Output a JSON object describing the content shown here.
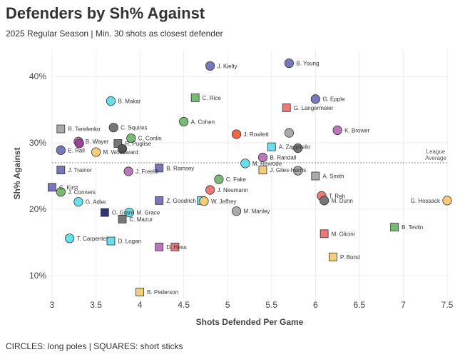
{
  "header": {
    "title": "Defenders by Sh% Against",
    "subtitle": "2025 Regular Season | Min. 30 shots as closest defender"
  },
  "footer": "CIRCLES: long poles | SQUARES: short sticks",
  "chart_data": {
    "type": "scatter",
    "xlabel": "Shots Defended Per Game",
    "ylabel": "Sh% Against",
    "xlim": [
      3.0,
      7.5
    ],
    "ylim": [
      6,
      44
    ],
    "xticks": [
      3,
      3.5,
      4,
      4.5,
      5,
      5.5,
      6,
      6.5,
      7,
      7.5
    ],
    "xtick_labels": [
      "3",
      "3.5",
      "4",
      "4.5",
      "5",
      "5.5",
      "6",
      "6.5",
      "7",
      "7.5"
    ],
    "yticks": [
      10,
      20,
      30,
      40
    ],
    "ytick_labels": [
      "10%",
      "20%",
      "30%",
      "40%"
    ],
    "grid": true,
    "reference_line": {
      "y": 27.0,
      "label_lines": [
        "League",
        "Average"
      ]
    },
    "marker_legend": {
      "circle": "long poles",
      "square": "short sticks"
    },
    "points": [
      {
        "name": "J. Kielty",
        "x": 4.8,
        "y": 41.6,
        "shape": "circle",
        "color": "#7777bb"
      },
      {
        "name": "B. Young",
        "x": 5.7,
        "y": 42.0,
        "shape": "circle",
        "color": "#7777bb"
      },
      {
        "name": "B. Makar",
        "x": 3.67,
        "y": 36.3,
        "shape": "circle",
        "color": "#66e0ea"
      },
      {
        "name": "C. Rice",
        "x": 4.63,
        "y": 36.8,
        "shape": "square",
        "color": "#77bb77"
      },
      {
        "name": "G. Epple",
        "x": 6.0,
        "y": 36.6,
        "shape": "circle",
        "color": "#7777bb"
      },
      {
        "name": "G. Langermeier",
        "x": 5.67,
        "y": 35.3,
        "shape": "square",
        "color": "#ee7777"
      },
      {
        "name": "A. Cohen",
        "x": 4.5,
        "y": 33.2,
        "shape": "circle",
        "color": "#77bb77"
      },
      {
        "name": "R. Terefenko",
        "x": 3.1,
        "y": 32.1,
        "shape": "square",
        "color": "#aaaaaa"
      },
      {
        "name": "C. Squires",
        "x": 3.7,
        "y": 32.3,
        "shape": "circle",
        "color": "#777777"
      },
      {
        "name": "J. Rowlett",
        "x": 5.1,
        "y": 31.3,
        "shape": "circle",
        "color": "#ee6644"
      },
      {
        "name": "",
        "x": 5.7,
        "y": 31.5,
        "shape": "circle",
        "color": "#aaaaaa"
      },
      {
        "name": "K. Brower",
        "x": 6.25,
        "y": 31.9,
        "shape": "circle",
        "color": "#bb77bb"
      },
      {
        "name": "C. Conlin",
        "x": 3.9,
        "y": 30.7,
        "shape": "circle",
        "color": "#77bb77"
      },
      {
        "name": "B. Wayer",
        "x": 3.3,
        "y": 30.2,
        "shape": "circle",
        "color": "#bb77bb"
      },
      {
        "name": "",
        "x": 3.31,
        "y": 29.9,
        "shape": "circle",
        "color": "#994499"
      },
      {
        "name": "R. Puglise",
        "x": 3.75,
        "y": 29.9,
        "shape": "square",
        "color": "#777777"
      },
      {
        "name": "",
        "x": 3.8,
        "y": 29.1,
        "shape": "circle",
        "color": "#555555"
      },
      {
        "name": "A. Zappitello",
        "x": 5.5,
        "y": 29.4,
        "shape": "square",
        "color": "#66e0ea"
      },
      {
        "name": "",
        "x": 5.8,
        "y": 29.2,
        "shape": "circle",
        "color": "#777777"
      },
      {
        "name": "E. Rall",
        "x": 3.1,
        "y": 28.9,
        "shape": "circle",
        "color": "#7777bb"
      },
      {
        "name": "M. Woodward",
        "x": 3.5,
        "y": 28.6,
        "shape": "circle",
        "color": "#f5cc77"
      },
      {
        "name": "B. Randall",
        "x": 5.4,
        "y": 27.8,
        "shape": "circle",
        "color": "#bb77bb"
      },
      {
        "name": "M. Rexrode",
        "x": 5.2,
        "y": 26.9,
        "shape": "circle",
        "color": "#66e0ea"
      },
      {
        "name": "J. Trainor",
        "x": 3.1,
        "y": 25.9,
        "shape": "square",
        "color": "#7777bb"
      },
      {
        "name": "J. Freelill",
        "x": 3.87,
        "y": 25.7,
        "shape": "circle",
        "color": "#bb77bb"
      },
      {
        "name": "B. Ramsey",
        "x": 4.22,
        "y": 26.2,
        "shape": "square",
        "color": "#7777bb"
      },
      {
        "name": "J. Giles-Harris",
        "x": 5.4,
        "y": 25.9,
        "shape": "square",
        "color": "#f5cc77"
      },
      {
        "name": "",
        "x": 5.8,
        "y": 25.8,
        "shape": "circle",
        "color": "#aaaaaa"
      },
      {
        "name": "A. Smith",
        "x": 6.0,
        "y": 25.0,
        "shape": "square",
        "color": "#aaaaaa"
      },
      {
        "name": "C. Fake",
        "x": 4.9,
        "y": 24.5,
        "shape": "circle",
        "color": "#77bb77"
      },
      {
        "name": "C. Kirst",
        "x": 3.0,
        "y": 23.3,
        "shape": "square",
        "color": "#7777bb"
      },
      {
        "name": "J. Neumann",
        "x": 4.8,
        "y": 22.9,
        "shape": "circle",
        "color": "#ee7777"
      },
      {
        "name": "J. Conners",
        "x": 3.1,
        "y": 22.6,
        "shape": "circle",
        "color": "#77bb77"
      },
      {
        "name": "T. Reh",
        "x": 6.07,
        "y": 22.0,
        "shape": "circle",
        "color": "#ee7777"
      },
      {
        "name": "G. Adler",
        "x": 3.3,
        "y": 21.1,
        "shape": "circle",
        "color": "#66e0ea"
      },
      {
        "name": "Z. Goodrich",
        "x": 4.22,
        "y": 21.3,
        "shape": "square",
        "color": "#7777bb"
      },
      {
        "name": "",
        "x": 4.7,
        "y": 21.3,
        "shape": "square",
        "color": "#66e0ea"
      },
      {
        "name": "W. Jeffrey",
        "x": 4.73,
        "y": 21.2,
        "shape": "circle",
        "color": "#f5cc77"
      },
      {
        "name": "M. Dunn",
        "x": 6.1,
        "y": 21.3,
        "shape": "circle",
        "color": "#777777"
      },
      {
        "name": "G. Hossack",
        "x": 7.5,
        "y": 21.3,
        "shape": "circle",
        "color": "#f5cc77"
      },
      {
        "name": "O. Grant",
        "x": 3.6,
        "y": 19.5,
        "shape": "square",
        "color": "#333377"
      },
      {
        "name": "M. Grace",
        "x": 3.88,
        "y": 19.5,
        "shape": "circle",
        "color": "#66e0ea"
      },
      {
        "name": "C. Mazur",
        "x": 3.8,
        "y": 18.5,
        "shape": "square",
        "color": "#777777"
      },
      {
        "name": "M. Manley",
        "x": 5.1,
        "y": 19.7,
        "shape": "circle",
        "color": "#aaaaaa"
      },
      {
        "name": "B. Tevlin",
        "x": 6.9,
        "y": 17.3,
        "shape": "square",
        "color": "#77bb77"
      },
      {
        "name": "M. Glicini",
        "x": 6.1,
        "y": 16.3,
        "shape": "square",
        "color": "#ee7777"
      },
      {
        "name": "T. Carpenter",
        "x": 3.2,
        "y": 15.6,
        "shape": "circle",
        "color": "#66e0ea"
      },
      {
        "name": "D. Logan",
        "x": 3.67,
        "y": 15.2,
        "shape": "square",
        "color": "#66e0ea"
      },
      {
        "name": "D. Hess",
        "x": 4.22,
        "y": 14.3,
        "shape": "square",
        "color": "#bb77bb"
      },
      {
        "name": "",
        "x": 4.4,
        "y": 14.3,
        "shape": "square",
        "color": "#ee7777"
      },
      {
        "name": "P. Bond",
        "x": 6.2,
        "y": 12.8,
        "shape": "square",
        "color": "#f5cc77"
      },
      {
        "name": "B. Pederson",
        "x": 4.0,
        "y": 7.5,
        "shape": "square",
        "color": "#f5cc77"
      }
    ]
  }
}
